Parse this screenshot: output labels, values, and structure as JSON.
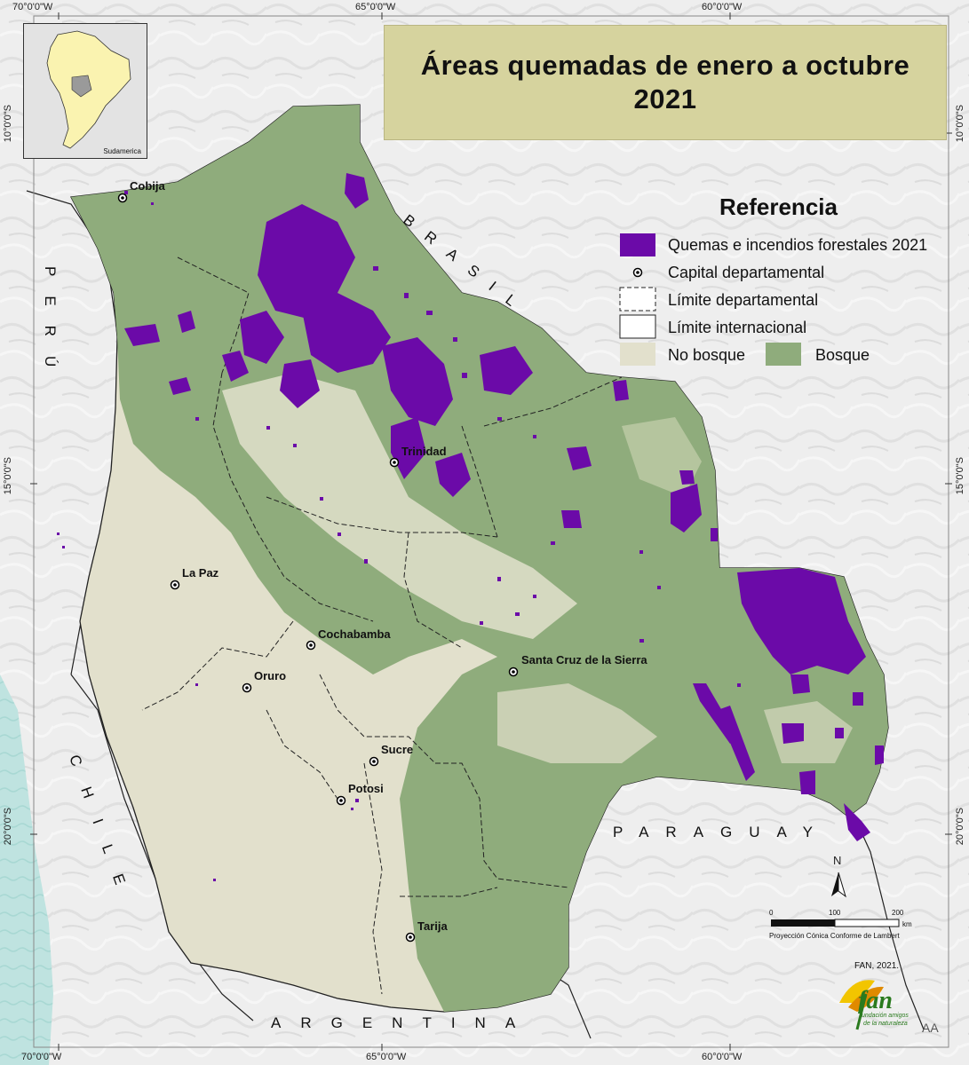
{
  "title": {
    "line1": "Áreas quemadas de enero a octubre",
    "line2": "2021"
  },
  "inset": {
    "label": "Sudamerica"
  },
  "coords": {
    "top": [
      "70°0'0\"W",
      "65°0'0\"W",
      "60°0'0\"W"
    ],
    "bottom": [
      "70°0'0\"W",
      "65°0'0\"W",
      "60°0'0\"W"
    ],
    "left": [
      "10°0'0\"S",
      "15°0'0\"S",
      "20°0'0\"S"
    ],
    "right": [
      "10°0'0\"S",
      "15°0'0\"S",
      "20°0'0\"S"
    ]
  },
  "legend": {
    "title": "Referencia",
    "burn": "Quemas e incendios forestales 2021",
    "capital": "Capital departamental",
    "dept_limit": "Límite departamental",
    "intl_limit": "Límite internacional",
    "no_forest": "No bosque",
    "forest": "Bosque"
  },
  "colors": {
    "burn": "#6b0aa8",
    "forest": "#8fac7c",
    "no_forest": "#e2e0cc",
    "title_bg": "#d6d39e",
    "inset_continent": "#faf3b0",
    "inset_bolivia": "#9a9a9a"
  },
  "cities": {
    "cobija": "Cobija",
    "trinidad": "Trinidad",
    "lapaz": "La Paz",
    "cochabamba": "Cochabamba",
    "oruro": "Oruro",
    "santacruz": "Santa Cruz de la Sierra",
    "sucre": "Sucre",
    "potosi": "Potosi",
    "tarija": "Tarija"
  },
  "countries": {
    "brasil": "BRASIL",
    "peru": "PERÚ",
    "chile": "CHILE",
    "paraguay": "PARAGUAY",
    "argentina": "ARGENTINA",
    "edge_fragment": "AA"
  },
  "scale": {
    "t0": "0",
    "t1": "100",
    "t2": "200",
    "unit": "km",
    "projection": "Proyección Cónica Conforme de Lambert"
  },
  "north": "N",
  "credit": {
    "year": "FAN, 2021.",
    "logo_text": "fan",
    "logo_sub1": "fundación amigos",
    "logo_sub2": "de la naturaleza"
  }
}
